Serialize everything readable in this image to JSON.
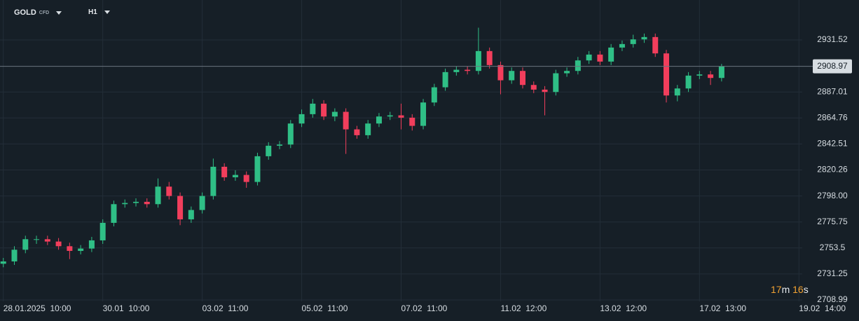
{
  "header": {
    "symbol": "GOLD",
    "symbol_tag": "CFD",
    "timeframe": "H1"
  },
  "countdown": {
    "minutes": "17",
    "minutes_unit": "m",
    "seconds": "16",
    "seconds_unit": "s"
  },
  "chart_data": {
    "type": "candlestick",
    "x": [
      0,
      1,
      2,
      3,
      4,
      5,
      6,
      7,
      8,
      9,
      10,
      11,
      12,
      13,
      14,
      15,
      16,
      17,
      18,
      19,
      20,
      21,
      22,
      23,
      24,
      25,
      26,
      27,
      28,
      29,
      30,
      31,
      32,
      33,
      34,
      35,
      36,
      37,
      38,
      39,
      40,
      41,
      42,
      43,
      44,
      45,
      46,
      47,
      48,
      49,
      50,
      51,
      52,
      53,
      54,
      55,
      56,
      57,
      58,
      59,
      60,
      61,
      62,
      63,
      64,
      65
    ],
    "open": [
      2740,
      2742,
      2752,
      2761,
      2761,
      2759,
      2755,
      2751,
      2753,
      2760,
      2775,
      2791,
      2792,
      2793,
      2791,
      2806,
      2798,
      2778,
      2786,
      2798,
      2823,
      2814,
      2816,
      2810,
      2832,
      2841,
      2842,
      2860,
      2868,
      2877,
      2866,
      2870,
      2855,
      2850,
      2860,
      2866,
      2867,
      2865,
      2858,
      2878,
      2891,
      2904,
      2906,
      2905,
      2922,
      2910,
      2897,
      2905,
      2893,
      2889,
      2887,
      2903,
      2905,
      2914,
      2919,
      2913,
      2925,
      2928,
      2932,
      2934,
      2920,
      2884,
      2890,
      2901,
      2902,
      2899
    ],
    "high": [
      2745,
      2755,
      2764,
      2764,
      2764,
      2762,
      2758,
      2756,
      2763,
      2778,
      2794,
      2795,
      2796,
      2796,
      2813,
      2810,
      2801,
      2789,
      2801,
      2830,
      2826,
      2820,
      2819,
      2835,
      2844,
      2845,
      2863,
      2872,
      2881,
      2880,
      2873,
      2873,
      2858,
      2863,
      2869,
      2870,
      2877,
      2868,
      2881,
      2894,
      2907,
      2909,
      2909,
      2942,
      2925,
      2913,
      2908,
      2908,
      2896,
      2892,
      2906,
      2908,
      2917,
      2922,
      2922,
      2928,
      2931,
      2936,
      2937,
      2937,
      2923,
      2893,
      2904,
      2905,
      2905,
      2911
    ],
    "low": [
      2737,
      2739,
      2749,
      2757,
      2756,
      2752,
      2744,
      2748,
      2750,
      2757,
      2772,
      2788,
      2789,
      2788,
      2788,
      2795,
      2773,
      2775,
      2783,
      2795,
      2811,
      2811,
      2805,
      2807,
      2829,
      2838,
      2839,
      2857,
      2865,
      2863,
      2862,
      2834,
      2847,
      2847,
      2857,
      2863,
      2855,
      2854,
      2855,
      2875,
      2888,
      2901,
      2902,
      2902,
      2907,
      2885,
      2894,
      2890,
      2886,
      2867,
      2884,
      2900,
      2902,
      2911,
      2910,
      2910,
      2922,
      2925,
      2929,
      2917,
      2878,
      2879,
      2887,
      2898,
      2893,
      2896
    ],
    "close": [
      2742,
      2752,
      2761,
      2761,
      2759,
      2755,
      2751,
      2753,
      2760,
      2775,
      2791,
      2792,
      2793,
      2791,
      2806,
      2798,
      2778,
      2786,
      2798,
      2823,
      2814,
      2816,
      2810,
      2832,
      2841,
      2842,
      2860,
      2868,
      2877,
      2866,
      2870,
      2855,
      2850,
      2860,
      2866,
      2867,
      2865,
      2858,
      2878,
      2891,
      2904,
      2906,
      2905,
      2922,
      2910,
      2897,
      2905,
      2893,
      2889,
      2887,
      2903,
      2905,
      2914,
      2919,
      2913,
      2925,
      2928,
      2932,
      2934,
      2920,
      2884,
      2890,
      2901,
      2902,
      2899,
      2909
    ],
    "up_color": "#2fbf86",
    "down_color": "#f23e5c",
    "xlim": [
      -0.3,
      72.3
    ],
    "xticks": [
      {
        "value": 0,
        "label": "28.01.2025  10:00"
      },
      {
        "value": 9,
        "label": "30.01  10:00"
      },
      {
        "value": 18,
        "label": "03.02  11:00"
      },
      {
        "value": 27,
        "label": "05.02  11:00"
      },
      {
        "value": 36,
        "label": "07.02  11:00"
      },
      {
        "value": 45,
        "label": "11.02  12:00"
      },
      {
        "value": 54,
        "label": "13.02  12:00"
      },
      {
        "value": 63,
        "label": "17.02  13:00"
      },
      {
        "value": 72,
        "label": "19.02  14:00"
      }
    ],
    "ylim": [
      2707.8,
      2965.7
    ],
    "yticks": [
      2931.52,
      2887.01,
      2864.76,
      2842.51,
      2820.26,
      {
        "value": 2798,
        "label": "2798.00"
      },
      2775.75,
      2753.5,
      2731.25,
      2708.99
    ],
    "last_price": 2908.97,
    "grid": true
  }
}
